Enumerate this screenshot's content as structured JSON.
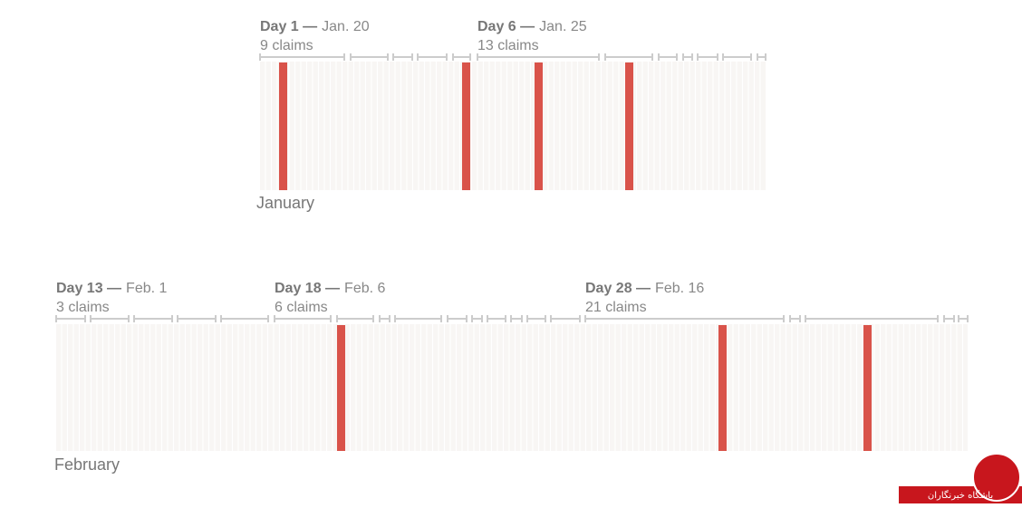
{
  "panels": [
    {
      "month": "January",
      "annotations": [
        {
          "day": "Day 1 —",
          "date": "Jan. 20",
          "claims": "9 claims"
        },
        {
          "day": "Day 6 —",
          "date": "Jan. 25",
          "claims": "13 claims"
        }
      ]
    },
    {
      "month": "February",
      "annotations": [
        {
          "day": "Day 13 —",
          "date": "Feb. 1",
          "claims": "3 claims"
        },
        {
          "day": "Day 18 —",
          "date": "Feb. 6",
          "claims": "6 claims"
        },
        {
          "day": "Day 28 —",
          "date": "Feb. 16",
          "claims": "21 claims"
        }
      ]
    }
  ],
  "watermark": "باشگاه خبرنگاران"
}
